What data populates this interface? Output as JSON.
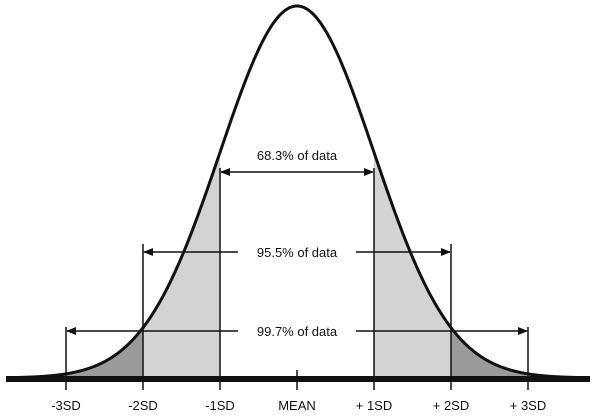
{
  "diagram": {
    "type": "normal-distribution",
    "colors": {
      "curve": "#111111",
      "inner_shade": "#d3d3d5",
      "outer_shade": "#9a9a9c",
      "baseline": "#111111"
    },
    "axis_labels": [
      "-3SD",
      "-2SD",
      "-1SD",
      "MEAN",
      "+ 1SD",
      "+ 2SD",
      "+ 3SD"
    ],
    "bands": [
      {
        "label": "68.3% of data",
        "from_sd": -1,
        "to_sd": 1
      },
      {
        "label": "95.5% of data",
        "from_sd": -2,
        "to_sd": 2
      },
      {
        "label": "99.7% of data",
        "from_sd": -3,
        "to_sd": 3
      }
    ]
  }
}
